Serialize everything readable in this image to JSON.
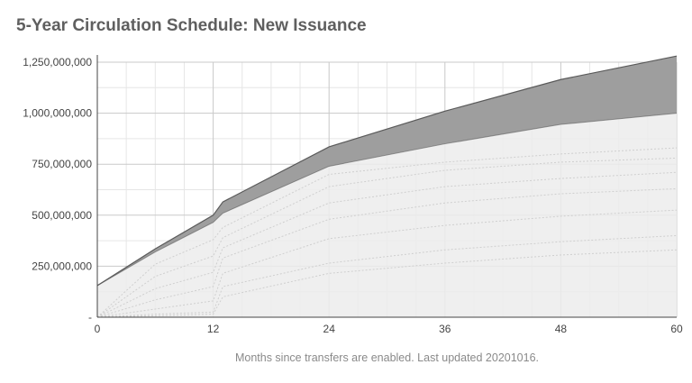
{
  "title": "5-Year Circulation Schedule: New Issuance",
  "caption": "Months since transfers are enabled. Last updated 20201016.",
  "colors": {
    "background": "#ffffff",
    "title": "#5f5f5f",
    "grid_major": "#c9c9c9",
    "grid_minor": "#e6e6e6",
    "axis": "#444444",
    "base_area": "#ececec",
    "new_issuance_area": "#9e9e9e",
    "outline": "#5a5a5a",
    "band_lines": "#cfcfcf",
    "caption": "#8a8a8a"
  },
  "chart_data": {
    "type": "area",
    "title": "5-Year Circulation Schedule: New Issuance",
    "xlabel": "Months since transfers are enabled. Last updated 20201016.",
    "ylabel": "",
    "xlim": [
      0,
      60
    ],
    "ylim": [
      0,
      1250000000
    ],
    "x_ticks": [
      0,
      12,
      24,
      36,
      48,
      60
    ],
    "y_ticks": [
      0,
      250000000,
      500000000,
      750000000,
      1000000000,
      1250000000
    ],
    "y_tick_labels": [
      "-",
      "250,000,000",
      "500,000,000",
      "750,000,000",
      "1,000,000,000",
      "1,250,000,000"
    ],
    "grid": true,
    "legend": "none",
    "stacked": true,
    "x": [
      0,
      6,
      12,
      13,
      24,
      36,
      48,
      60
    ],
    "series": [
      {
        "values": [
          155000000,
          320000000,
          465000000,
          510000000,
          740000000,
          850000000,
          945000000,
          1000000000
        ]
      },
      {
        "values": [
          0,
          15000000,
          35000000,
          55000000,
          95000000,
          160000000,
          220000000,
          280000000
        ]
      }
    ],
    "band_lines": [
      [
        0,
        7000000,
        15000000,
        100000000,
        215000000,
        265000000,
        305000000,
        330000000
      ],
      [
        0,
        15000000,
        25000000,
        150000000,
        265000000,
        330000000,
        370000000,
        400000000
      ],
      [
        0,
        40000000,
        80000000,
        215000000,
        385000000,
        450000000,
        495000000,
        525000000
      ],
      [
        0,
        85000000,
        150000000,
        290000000,
        480000000,
        560000000,
        605000000,
        630000000
      ],
      [
        0,
        140000000,
        220000000,
        340000000,
        560000000,
        640000000,
        680000000,
        710000000
      ],
      [
        0,
        200000000,
        300000000,
        390000000,
        640000000,
        720000000,
        760000000,
        780000000
      ],
      [
        0,
        260000000,
        380000000,
        440000000,
        700000000,
        760000000,
        800000000,
        830000000
      ]
    ]
  }
}
